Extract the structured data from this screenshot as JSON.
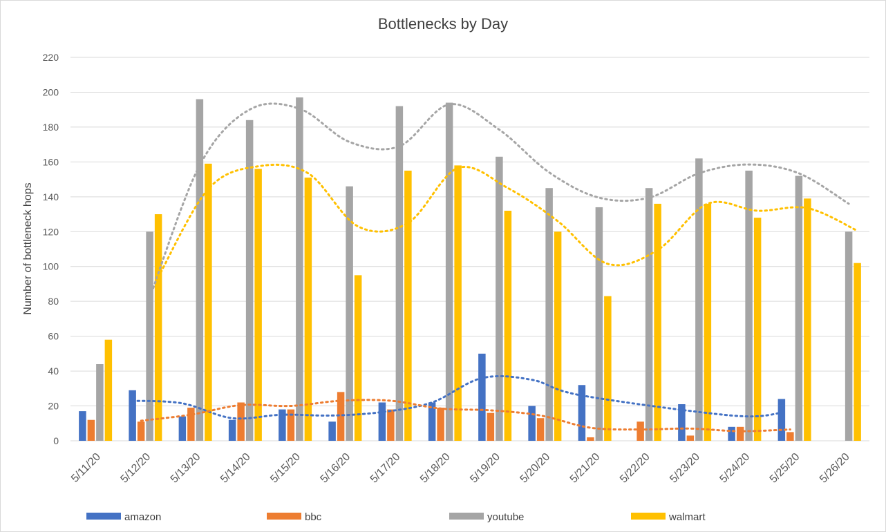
{
  "chart_data": {
    "type": "bar",
    "title": "Bottlenecks by Day",
    "xlabel": "",
    "ylabel": "Number of bottleneck hops",
    "ylim": [
      0,
      220
    ],
    "yticks": [
      0,
      20,
      40,
      60,
      80,
      100,
      120,
      140,
      160,
      180,
      200,
      220
    ],
    "grid": true,
    "legend_position": "bottom",
    "categories": [
      "5/11/20",
      "5/12/20",
      "5/13/20",
      "5/14/20",
      "5/15/20",
      "5/16/20",
      "5/17/20",
      "5/18/20",
      "5/19/20",
      "5/20/20",
      "5/21/20",
      "5/22/20",
      "5/23/20",
      "5/24/20",
      "5/25/20",
      "5/26/20"
    ],
    "series": [
      {
        "name": "amazon",
        "color": "#4472C4",
        "values": [
          17,
          29,
          14,
          12,
          18,
          11,
          22,
          22,
          50,
          20,
          32,
          null,
          21,
          8,
          24,
          null
        ]
      },
      {
        "name": "bbc",
        "color": "#ED7D31",
        "values": [
          12,
          11,
          19,
          22,
          18,
          28,
          18,
          19,
          16,
          13,
          2,
          11,
          3,
          8,
          5,
          null
        ]
      },
      {
        "name": "youtube",
        "color": "#A5A5A5",
        "values": [
          44,
          120,
          196,
          184,
          197,
          146,
          192,
          194,
          163,
          145,
          134,
          145,
          162,
          155,
          152,
          120
        ]
      },
      {
        "name": "walmart",
        "color": "#FFC000",
        "values": [
          58,
          130,
          159,
          156,
          151,
          95,
          155,
          158,
          132,
          120,
          83,
          136,
          136,
          128,
          139,
          102
        ]
      }
    ],
    "trendlines": {
      "type": "2-period moving average",
      "style": "dotted",
      "series": [
        "amazon",
        "bbc",
        "youtube",
        "walmart"
      ]
    }
  }
}
